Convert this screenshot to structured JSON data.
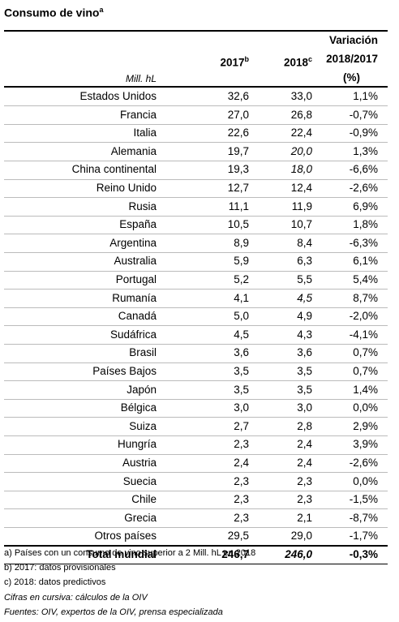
{
  "title": {
    "text": "Consumo de vino",
    "sup": "a"
  },
  "header": {
    "unit": "Mill. hL",
    "col2017": {
      "text": "2017",
      "sup": "b"
    },
    "col2018": {
      "text": "2018",
      "sup": "c"
    },
    "variation": [
      "Variación",
      "2018/2017",
      "(%)"
    ]
  },
  "table": {
    "rows": [
      [
        "Estados Unidos",
        "32,6",
        "33,0",
        "1,1%"
      ],
      [
        "Francia",
        "27,0",
        "26,8",
        "-0,7%"
      ],
      [
        "Italia",
        "22,6",
        "22,4",
        "-0,9%"
      ],
      [
        "Alemania",
        "19,7",
        "20,0",
        "1,3%"
      ],
      [
        "China continental",
        "19,3",
        "18,0",
        "-6,6%"
      ],
      [
        "Reino Unido",
        "12,7",
        "12,4",
        "-2,6%"
      ],
      [
        "Rusia",
        "11,1",
        "11,9",
        "6,9%"
      ],
      [
        "España",
        "10,5",
        "10,7",
        "1,8%"
      ],
      [
        "Argentina",
        "8,9",
        "8,4",
        "-6,3%"
      ],
      [
        "Australia",
        "5,9",
        "6,3",
        "6,1%"
      ],
      [
        "Portugal",
        "5,2",
        "5,5",
        "5,4%"
      ],
      [
        "Rumanía",
        "4,1",
        "4,5",
        "8,7%"
      ],
      [
        "Canadá",
        "5,0",
        "4,9",
        "-2,0%"
      ],
      [
        "Sudáfrica",
        "4,5",
        "4,3",
        "-4,1%"
      ],
      [
        "Brasil",
        "3,6",
        "3,6",
        "0,7%"
      ],
      [
        "Países Bajos",
        "3,5",
        "3,5",
        "0,7%"
      ],
      [
        "Japón",
        "3,5",
        "3,5",
        "1,4%"
      ],
      [
        "Bélgica",
        "3,0",
        "3,0",
        "0,0%"
      ],
      [
        "Suiza",
        "2,7",
        "2,8",
        "2,9%"
      ],
      [
        "Hungría",
        "2,3",
        "2,4",
        "3,9%"
      ],
      [
        "Austria",
        "2,4",
        "2,4",
        "-2,6%"
      ],
      [
        "Suecia",
        "2,3",
        "2,3",
        "0,0%"
      ],
      [
        "Chile",
        "2,3",
        "2,3",
        "-1,5%"
      ],
      [
        "Grecia",
        "2,3",
        "2,1",
        "-8,7%"
      ],
      [
        "Otros países",
        "29,5",
        "29,0",
        "-1,7%"
      ],
      [
        "Total mundial",
        "246,7",
        "246,0",
        "-0,3%"
      ]
    ]
  },
  "footnotes": [
    "a) Países con un consumo de vino superior a 2 Mill. hL en 2018",
    "b) 2017: datos provisionales",
    "c) 2018: datos predictivos",
    "Cifras en cursiva: cálculos de la OIV",
    "Fuentes: OIV, expertos de la OIV, prensa especializada"
  ]
}
